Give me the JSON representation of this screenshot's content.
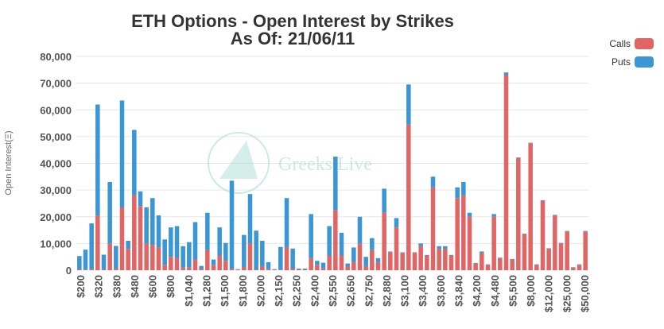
{
  "chart_data": {
    "type": "bar",
    "stacked": true,
    "title": "ETH Options - Open Interest by Strikes",
    "subtitle": "As Of: 21/06/11",
    "ylabel": "Open Interest(Ξ)",
    "xlabel": "",
    "ylim": [
      0,
      80000
    ],
    "yticks": [
      "0",
      "10,000",
      "20,000",
      "30,000",
      "40,000",
      "50,000",
      "60,000",
      "70,000",
      "80,000"
    ],
    "grid": true,
    "legend_position": "top-right",
    "x_tick_labels": [
      "$200",
      "$320",
      "$380",
      "$480",
      "$600",
      "$800",
      "$1,040",
      "$1,280",
      "$1,500",
      "$1,800",
      "$2,000",
      "$2,150",
      "$2,250",
      "$2,400",
      "$2,550",
      "$2,650",
      "$2,750",
      "$2,880",
      "$3,100",
      "$3,400",
      "$3,600",
      "$3,840",
      "$4,200",
      "$4,480",
      "$5,500",
      "$8,000",
      "$12,000",
      "$25,000",
      "$50,000"
    ],
    "series": [
      {
        "name": "Calls",
        "color": "#e06666",
        "values": [
          300,
          200,
          500,
          20500,
          300,
          10000,
          600,
          23500,
          8000,
          28000,
          24000,
          10000,
          9500,
          8500,
          2000,
          5000,
          4500,
          1000,
          1000,
          4000,
          600,
          7500,
          2000,
          5500,
          3500,
          500,
          200,
          1200,
          10000,
          300,
          1500,
          500,
          200,
          200,
          8500,
          600,
          300,
          300,
          4500,
          2000,
          700,
          5500,
          22500,
          5500,
          1500,
          3000,
          10000,
          1500,
          7500,
          3000,
          21500,
          6800,
          16000,
          6500,
          54500,
          6500,
          9000,
          5500,
          31000,
          8000,
          8000,
          5500,
          27000,
          28000,
          20000,
          2500,
          6500,
          2000,
          20000,
          4500,
          73000,
          4000,
          42000,
          13500,
          47500,
          2000,
          26000,
          8000,
          20500,
          10000,
          14500,
          900,
          2000,
          14500
        ]
      },
      {
        "name": "Puts",
        "color": "#3a96d4",
        "values": [
          5000,
          7500,
          17000,
          41500,
          5500,
          23000,
          8500,
          40000,
          3000,
          24500,
          5500,
          13500,
          17500,
          12000,
          9500,
          11000,
          12000,
          8000,
          9500,
          14000,
          1000,
          14000,
          2000,
          10500,
          6700,
          33000,
          200,
          12000,
          18500,
          14500,
          9500,
          2500,
          200,
          8500,
          18500,
          7500,
          300,
          300,
          16500,
          1500,
          2100,
          11000,
          20000,
          8500,
          1000,
          5500,
          10000,
          3500,
          4500,
          1500,
          9000,
          200,
          3500,
          200,
          15000,
          200,
          1000,
          200,
          4000,
          1000,
          1000,
          200,
          4000,
          5000,
          1500,
          200,
          500,
          200,
          1000,
          200,
          1000,
          200,
          200,
          200,
          200,
          200,
          200,
          200,
          200,
          200,
          200,
          200,
          200,
          200
        ]
      }
    ]
  },
  "legend": {
    "items": [
      {
        "label": "Calls",
        "color": "#e06666"
      },
      {
        "label": "Puts",
        "color": "#3a96d4"
      }
    ]
  },
  "watermark": {
    "text": "Greeks.Live",
    "color": "#9fd9cf"
  }
}
